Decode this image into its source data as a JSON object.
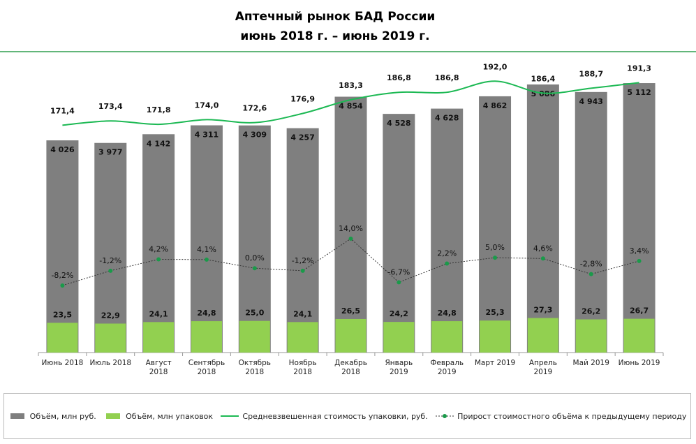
{
  "chart_data": {
    "type": "combo",
    "title": [
      "Аптечный рынок БАД России",
      "июнь 2018 г. – июнь 2019 г."
    ],
    "categories": [
      "Июнь 2018",
      "Июль 2018",
      "Август 2018",
      "Сентябрь 2018",
      "Октябрь 2018",
      "Ноябрь 2018",
      "Декабрь 2018",
      "Январь 2019",
      "Февраль 2019",
      "Март 2019",
      "Апрель 2019",
      "Май 2019",
      "Июнь 2019"
    ],
    "ylim": [
      0,
      6000
    ],
    "y2lim": [
      0,
      250
    ],
    "y3lim": [
      65,
      213
    ],
    "y4lim": [
      -40,
      110
    ],
    "series": [
      {
        "name": "Объём, млн руб.",
        "type": "bar",
        "axis": "y",
        "color": "#7f7f7f",
        "values": [
          4026,
          3977,
          4142,
          4311,
          4309,
          4257,
          4854,
          4528,
          4628,
          4862,
          5086,
          4943,
          5112
        ],
        "value_labels": [
          "4 026",
          "3 977",
          "4 142",
          "4 311",
          "4 309",
          "4 257",
          "4 854",
          "4 528",
          "4 628",
          "4 862",
          "5 086",
          "4 943",
          "5 112"
        ]
      },
      {
        "name": "Объём, млн упаковок",
        "type": "bar",
        "axis": "y2",
        "color": "#92d050",
        "values": [
          23.5,
          22.9,
          24.1,
          24.8,
          25.0,
          24.1,
          26.5,
          24.2,
          24.8,
          25.3,
          27.3,
          26.2,
          26.7
        ],
        "value_labels": [
          "23,5",
          "22,9",
          "24,1",
          "24,8",
          "25,0",
          "24,1",
          "26,5",
          "24,2",
          "24,8",
          "25,3",
          "27,3",
          "26,2",
          "26,7"
        ]
      },
      {
        "name": "Средневзвешенная стоимость упаковки, руб.",
        "type": "line",
        "axis": "y3",
        "color": "#1db954",
        "values": [
          171.4,
          173.4,
          171.8,
          174.0,
          172.6,
          176.9,
          183.3,
          186.8,
          186.8,
          192.0,
          186.4,
          188.7,
          191.3
        ],
        "value_labels": [
          "171,4",
          "173,4",
          "171,8",
          "174,0",
          "172,6",
          "176,9",
          "183,3",
          "186,8",
          "186,8",
          "192,0",
          "186,4",
          "188,7",
          "191,3"
        ]
      },
      {
        "name": "Прирост стоимостного объёма к предыдущему периоду",
        "type": "dotted-line",
        "axis": "y4",
        "color": "#1a9a4a",
        "values": [
          -8.2,
          -1.2,
          4.2,
          4.1,
          0.0,
          -1.2,
          14.0,
          -6.7,
          2.2,
          5.0,
          4.6,
          -2.8,
          3.4
        ],
        "value_labels": [
          "-8,2%",
          "-1,2%",
          "4,2%",
          "4,1%",
          "0,0%",
          "-1,2%",
          "14,0%",
          "-6,7%",
          "2,2%",
          "5,0%",
          "4,6%",
          "-2,8%",
          "3,4%"
        ]
      }
    ]
  }
}
